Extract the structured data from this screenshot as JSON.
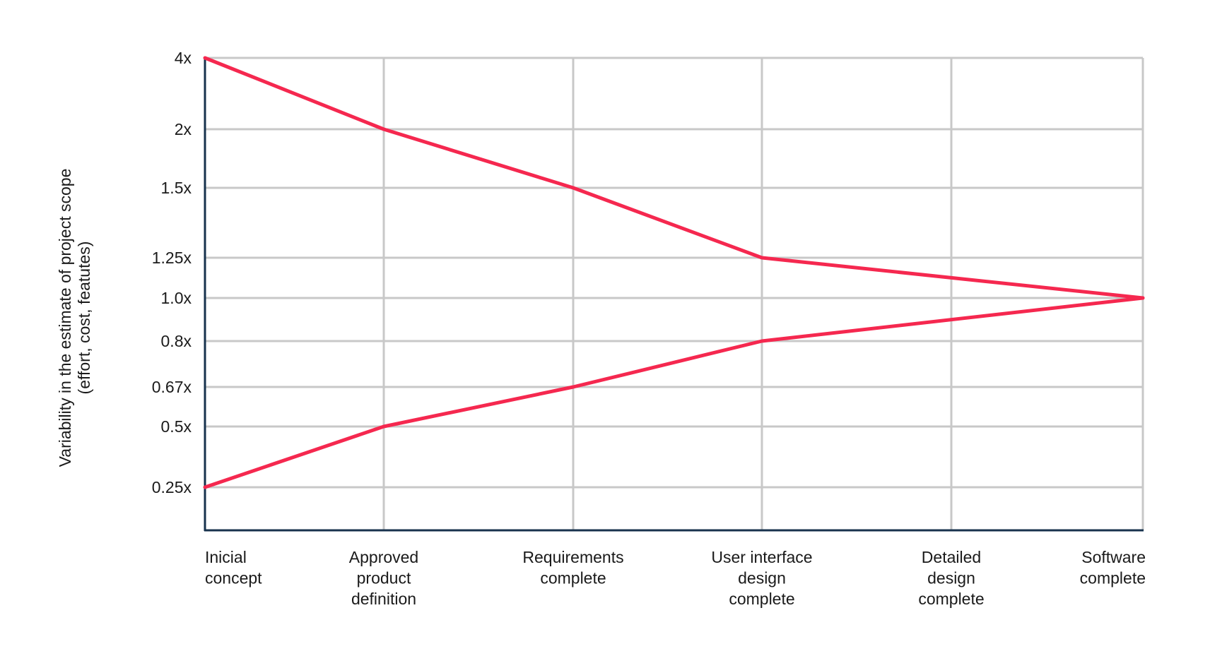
{
  "chart_data": {
    "type": "line",
    "title": "",
    "xlabel": "",
    "ylabel": "Variability in the estimate of project scope (effort, cost, featutes)",
    "ylabel_lines": [
      "Variability in the estimate of project scope",
      "(effort, cost, featutes)"
    ],
    "categories": [
      "Inicial concept",
      "Approved product definition",
      "Requirements complete",
      "User interface design complete",
      "Detailed design complete",
      "Software complete"
    ],
    "category_label_lines": [
      [
        "Inicial",
        "concept"
      ],
      [
        "Approved",
        "product",
        "definition"
      ],
      [
        "Requirements",
        "complete"
      ],
      [
        "User interface",
        "design",
        "complete"
      ],
      [
        "Detailed",
        "design",
        "complete"
      ],
      [
        "Software",
        "complete"
      ]
    ],
    "y_ticks": [
      {
        "value": 4,
        "label": "4x"
      },
      {
        "value": 2,
        "label": "2x"
      },
      {
        "value": 1.5,
        "label": "1.5x"
      },
      {
        "value": 1.25,
        "label": "1.25x"
      },
      {
        "value": 1.0,
        "label": "1.0x"
      },
      {
        "value": 0.8,
        "label": "0.8x"
      },
      {
        "value": 0.67,
        "label": "0.67x"
      },
      {
        "value": 0.5,
        "label": "0.5x"
      },
      {
        "value": 0.25,
        "label": "0.25x"
      }
    ],
    "series": [
      {
        "values": [
          4,
          2,
          1.5,
          1.25,
          null,
          1.0
        ],
        "color": "#f5284f"
      },
      {
        "values": [
          0.25,
          0.5,
          0.67,
          0.8,
          null,
          1.0
        ],
        "color": "#f5284f"
      }
    ],
    "grid": true,
    "legend": false,
    "axis_color": "#17324d",
    "grid_color": "#c8c8c8"
  }
}
